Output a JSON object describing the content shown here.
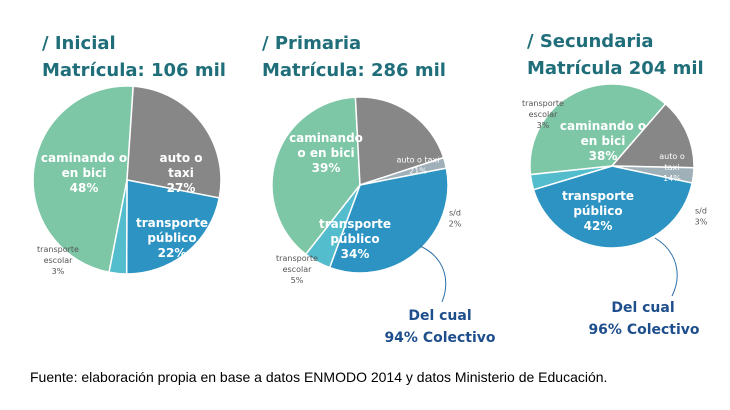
{
  "colors": {
    "walk": "#7dc6a6",
    "car": "#878787",
    "public": "#2d93c3",
    "school": "#53bccd",
    "sd": "#9fb0b8",
    "heading": "#1f6e7a",
    "note": "#1e4e8c"
  },
  "chart_data": [
    {
      "type": "pie",
      "title": "/ Inicial",
      "subtitle": "Matrícula: 106 mil",
      "slices": [
        {
          "label": "caminando o en bici",
          "value": 48,
          "pct_label": "48%"
        },
        {
          "label": "auto o taxi",
          "value": 27,
          "pct_label": "27%"
        },
        {
          "label": "transporte público",
          "value": 22,
          "pct_label": "22%"
        },
        {
          "label": "transporte escolar",
          "value": 3,
          "pct_label": "3%"
        }
      ]
    },
    {
      "type": "pie",
      "title": "/ Primaria",
      "subtitle": "Matrícula: 286 mil",
      "slices": [
        {
          "label": "caminando o en bici",
          "value": 39,
          "pct_label": "39%"
        },
        {
          "label": "auto o taxi",
          "value": 21,
          "pct_label": "21%"
        },
        {
          "label": "s/d",
          "value": 2,
          "pct_label": "2%"
        },
        {
          "label": "transporte público",
          "value": 34,
          "pct_label": "34%"
        },
        {
          "label": "transporte escolar",
          "value": 5,
          "pct_label": "5%"
        }
      ],
      "note_line1": "Del cual",
      "note_line2": "94% Colectivo"
    },
    {
      "type": "pie",
      "title": "/ Secundaria",
      "subtitle": "Matrícula 204 mil",
      "slices": [
        {
          "label": "caminando o en bici",
          "value": 38,
          "pct_label": "38%"
        },
        {
          "label": "auto o taxi",
          "value": 14,
          "pct_label": "14%"
        },
        {
          "label": "s/d",
          "value": 3,
          "pct_label": "3%"
        },
        {
          "label": "transporte público",
          "value": 42,
          "pct_label": "42%"
        },
        {
          "label": "transporte escolar",
          "value": 3,
          "pct_label": "3%"
        }
      ],
      "note_line1": "Del cual",
      "note_line2": "96% Colectivo"
    }
  ],
  "source": "Fuente: elaboración propia en base a datos ENMODO 2014 y datos Ministerio de Educación."
}
